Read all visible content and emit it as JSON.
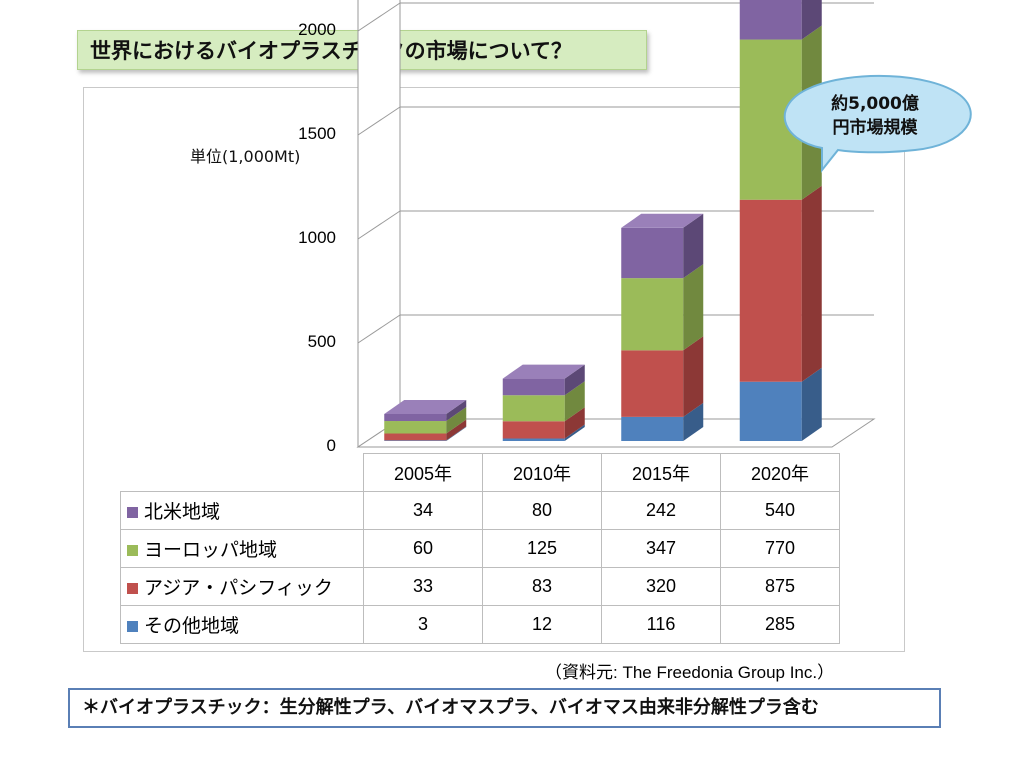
{
  "slide": {
    "title": "世界におけるバイオプラスチックの市場について？",
    "callout": [
      "約5,000億",
      "円市場規模"
    ],
    "source": "（資料元: The Freedonia Group Inc.）",
    "note": "＊バイオプラスチック：生分解性プラ、バイオマスプラ、バイオマス由来非分解性プラ含む"
  },
  "chart_data": {
    "type": "bar",
    "stacked": true,
    "three_d": true,
    "unit_label": "単位(1,000Mt)",
    "categories": [
      "2005年",
      "2010年",
      "2015年",
      "2020年"
    ],
    "ylim": [
      0,
      2500
    ],
    "yticks": [
      "0",
      "500",
      "1000",
      "1500",
      "2000",
      "2500"
    ],
    "grid": true,
    "series": [
      {
        "name": "その他地域",
        "values": [
          3,
          12,
          116,
          285
        ],
        "color": "#4f81bd",
        "side": "#385d8a",
        "top": "#6a96cf"
      },
      {
        "name": "アジア・パシフィック",
        "values": [
          33,
          83,
          320,
          875
        ],
        "color": "#c0504d",
        "side": "#8c3836",
        "top": "#d26c69"
      },
      {
        "name": "ヨーロッパ地域",
        "values": [
          60,
          125,
          347,
          770
        ],
        "color": "#9bbb59",
        "side": "#71893f",
        "top": "#b0cc77"
      },
      {
        "name": "北米地域",
        "values": [
          34,
          80,
          242,
          540
        ],
        "color": "#8064a2",
        "side": "#5c4876",
        "top": "#9a80b9"
      }
    ],
    "table_rows": [
      {
        "name": "北米地域",
        "values": [
          "34",
          "80",
          "242",
          "540"
        ],
        "color": "#8064a2"
      },
      {
        "name": "ヨーロッパ地域",
        "values": [
          "60",
          "125",
          "347",
          "770"
        ],
        "color": "#9bbb59"
      },
      {
        "name": "アジア・パシフィック",
        "values": [
          "33",
          "83",
          "320",
          "875"
        ],
        "color": "#c0504d"
      },
      {
        "name": "その他地域",
        "values": [
          "3",
          "12",
          "116",
          "285"
        ],
        "color": "#4f81bd"
      }
    ]
  }
}
